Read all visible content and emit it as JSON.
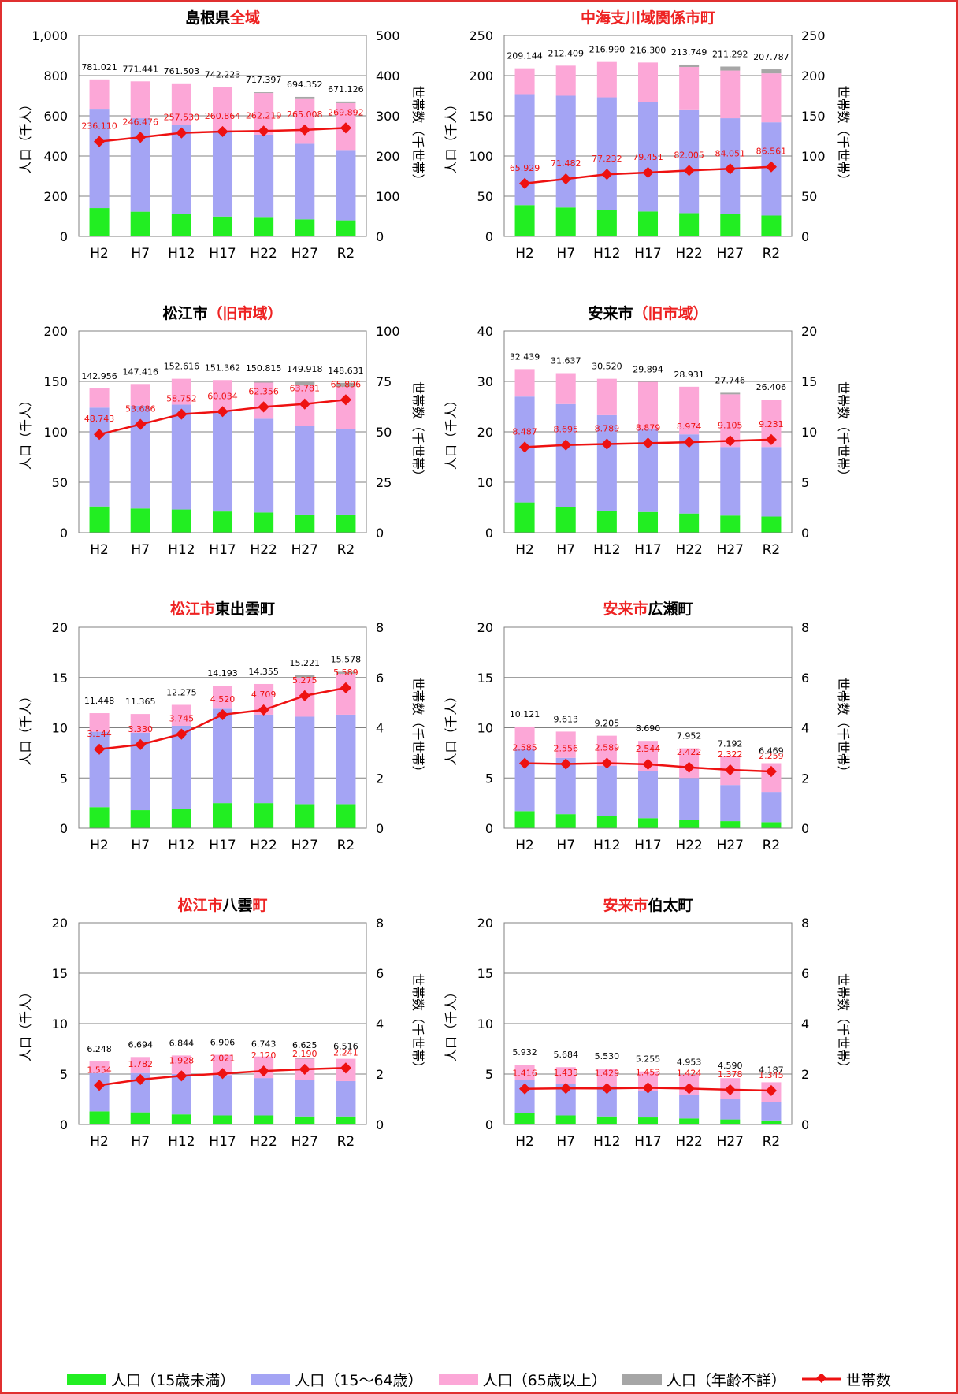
{
  "categories": [
    "H2",
    "H7",
    "H12",
    "H17",
    "H22",
    "H27",
    "R2"
  ],
  "y_left_label": "人口（千人）",
  "y_right_label": "世帯数（千世帯）",
  "colors": {
    "under15": "#22ee22",
    "age15_64": "#a4a4f4",
    "over65": "#fca7d7",
    "unknown": "#a6a6a6",
    "households": "#ee1111",
    "title_red": "#ee2222",
    "frame": "#e03030"
  },
  "legend": [
    {
      "key": "under15",
      "label": "人口（15歳未満）",
      "kind": "bar"
    },
    {
      "key": "age15_64",
      "label": "人口（15～64歳）",
      "kind": "bar"
    },
    {
      "key": "over65",
      "label": "人口（65歳以上）",
      "kind": "bar"
    },
    {
      "key": "unknown",
      "label": "人口（年齢不詳）",
      "kind": "bar"
    },
    {
      "key": "households",
      "label": "世帯数",
      "kind": "line"
    }
  ],
  "chart_data": [
    {
      "type": "bar",
      "title_parts": [
        {
          "text": "島根県",
          "red": false
        },
        {
          "text": "全域",
          "red": true
        }
      ],
      "ylim_left": [
        0,
        1000
      ],
      "yticks_left": [
        "0",
        "200",
        "400",
        "600",
        "800",
        "1,000"
      ],
      "ylim_right": [
        0,
        500
      ],
      "yticks_right": [
        "0",
        "100",
        "200",
        "300",
        "400",
        "500"
      ],
      "totals": [
        "781.021",
        "771.441",
        "761.503",
        "742.223",
        "717.397",
        "694.352",
        "671.126"
      ],
      "total_values": [
        781.021,
        771.441,
        761.503,
        742.223,
        717.397,
        694.352,
        671.126
      ],
      "under15": [
        141,
        123,
        110,
        99,
        93,
        85,
        80
      ],
      "age15_64": [
        494,
        465,
        446,
        428,
        413,
        376,
        350
      ],
      "unknown": [
        0,
        0,
        0,
        0,
        4,
        7,
        8
      ],
      "households": [
        236.11,
        246.476,
        257.53,
        260.864,
        262.219,
        265.008,
        269.892
      ],
      "household_labels": [
        "236.110",
        "246.476",
        "257.530",
        "260.864",
        "262.219",
        "265.008",
        "269.892"
      ]
    },
    {
      "type": "bar",
      "title_parts": [
        {
          "text": "中海支川域関係市町",
          "red": true
        }
      ],
      "ylim_left": [
        0,
        250
      ],
      "yticks_left": [
        "0",
        "50",
        "100",
        "150",
        "200",
        "250"
      ],
      "ylim_right": [
        0,
        250
      ],
      "yticks_right": [
        "0",
        "50",
        "100",
        "150",
        "200",
        "250"
      ],
      "totals": [
        "209.144",
        "212.409",
        "216.990",
        "216.300",
        "213.749",
        "211.292",
        "207.787"
      ],
      "total_values": [
        209.144,
        212.409,
        216.99,
        216.3,
        213.749,
        211.292,
        207.787
      ],
      "under15": [
        39,
        36,
        33,
        31,
        29,
        28,
        26
      ],
      "age15_64": [
        138,
        139,
        140,
        136,
        129,
        119,
        116
      ],
      "unknown": [
        0,
        0,
        0,
        0,
        3,
        5,
        5
      ],
      "households": [
        65.929,
        71.482,
        77.232,
        79.451,
        82.005,
        84.051,
        86.561
      ],
      "household_labels": [
        "65.929",
        "71.482",
        "77.232",
        "79.451",
        "82.005",
        "84.051",
        "86.561"
      ]
    },
    {
      "type": "bar",
      "title_parts": [
        {
          "text": "松江市",
          "red": false
        },
        {
          "text": "（旧市域）",
          "red": true
        }
      ],
      "ylim_left": [
        0,
        200
      ],
      "yticks_left": [
        "0",
        "50",
        "100",
        "150",
        "200"
      ],
      "ylim_right": [
        0,
        100
      ],
      "yticks_right": [
        "0",
        "25",
        "50",
        "75",
        "100"
      ],
      "totals": [
        "142.956",
        "147.416",
        "152.616",
        "151.362",
        "150.815",
        "149.918",
        "148.631"
      ],
      "total_values": [
        142.956,
        147.416,
        152.616,
        151.362,
        150.815,
        149.918,
        148.631
      ],
      "under15": [
        26,
        24,
        23,
        21,
        20,
        18,
        18
      ],
      "age15_64": [
        98,
        102,
        104,
        99,
        93,
        88,
        85
      ],
      "unknown": [
        0,
        0,
        0,
        0,
        2,
        4,
        4
      ],
      "households": [
        48.743,
        53.686,
        58.752,
        60.034,
        62.356,
        63.781,
        65.896
      ],
      "household_labels": [
        "48.743",
        "53.686",
        "58.752",
        "60.034",
        "62.356",
        "63.781",
        "65.896"
      ]
    },
    {
      "type": "bar",
      "title_parts": [
        {
          "text": "安来市",
          "red": false
        },
        {
          "text": "（旧市域）",
          "red": true
        }
      ],
      "ylim_left": [
        0,
        40
      ],
      "yticks_left": [
        "0",
        "10",
        "20",
        "30",
        "40"
      ],
      "ylim_right": [
        0,
        20
      ],
      "yticks_right": [
        "0",
        "5",
        "10",
        "15",
        "20"
      ],
      "totals": [
        "32.439",
        "31.637",
        "30.520",
        "29.894",
        "28.931",
        "27.746",
        "26.406"
      ],
      "total_values": [
        32.439,
        31.637,
        30.52,
        29.894,
        28.931,
        27.746,
        26.406
      ],
      "under15": [
        6,
        5,
        4.3,
        4.1,
        3.8,
        3.4,
        3.2
      ],
      "age15_64": [
        21,
        20.5,
        19,
        16.5,
        15.7,
        13.6,
        13.8
      ],
      "unknown": [
        0,
        0,
        0,
        0,
        0,
        0.3,
        0
      ],
      "households": [
        8.487,
        8.695,
        8.789,
        8.879,
        8.974,
        9.105,
        9.231
      ],
      "household_labels": [
        "8.487",
        "8.695",
        "8.789",
        "8.879",
        "8.974",
        "9.105",
        "9.231"
      ]
    },
    {
      "type": "bar",
      "title_parts": [
        {
          "text": "松江市",
          "red": true
        },
        {
          "text": "東出雲町",
          "red": false
        }
      ],
      "ylim_left": [
        0,
        20
      ],
      "yticks_left": [
        "0",
        "5",
        "10",
        "15",
        "20"
      ],
      "ylim_right": [
        0,
        8
      ],
      "yticks_right": [
        "0",
        "2",
        "4",
        "6",
        "8"
      ],
      "totals": [
        "11.448",
        "11.365",
        "12.275",
        "14.193",
        "14.355",
        "15.221",
        "15.578"
      ],
      "total_values": [
        11.448,
        11.365,
        12.275,
        14.193,
        14.355,
        15.221,
        15.578
      ],
      "under15": [
        2.1,
        1.8,
        1.9,
        2.5,
        2.5,
        2.4,
        2.4
      ],
      "age15_64": [
        7.5,
        7.7,
        8.3,
        9.4,
        8.8,
        8.7,
        8.9
      ],
      "unknown": [
        0,
        0,
        0,
        0,
        0,
        0.3,
        0.2
      ],
      "households": [
        3.144,
        3.33,
        3.745,
        4.52,
        4.709,
        5.275,
        5.589
      ],
      "household_labels": [
        "3.144",
        "3.330",
        "3.745",
        "4.520",
        "4.709",
        "5.275",
        "5.589"
      ]
    },
    {
      "type": "bar",
      "title_parts": [
        {
          "text": "安来市",
          "red": true
        },
        {
          "text": "広瀬町",
          "red": false
        }
      ],
      "ylim_left": [
        0,
        20
      ],
      "yticks_left": [
        "0",
        "5",
        "10",
        "15",
        "20"
      ],
      "ylim_right": [
        0,
        8
      ],
      "yticks_right": [
        "0",
        "2",
        "4",
        "6",
        "8"
      ],
      "totals": [
        "10.121",
        "9.613",
        "9.205",
        "8.690",
        "7.952",
        "7.192",
        "6.469"
      ],
      "total_values": [
        10.121,
        9.613,
        9.205,
        8.69,
        7.952,
        7.192,
        6.469
      ],
      "under15": [
        1.7,
        1.4,
        1.2,
        1.0,
        0.8,
        0.7,
        0.6
      ],
      "age15_64": [
        6.2,
        5.6,
        5.0,
        4.7,
        4.2,
        3.6,
        3.0
      ],
      "unknown": [
        0,
        0,
        0,
        0,
        0,
        0,
        0
      ],
      "households": [
        2.585,
        2.556,
        2.589,
        2.544,
        2.422,
        2.322,
        2.259
      ],
      "household_labels": [
        "2.585",
        "2.556",
        "2.589",
        "2.544",
        "2.422",
        "2.322",
        "2.259"
      ]
    },
    {
      "type": "bar",
      "title_parts": [
        {
          "text": "松江市",
          "red": true
        },
        {
          "text": "八雲",
          "red": false
        },
        {
          "text": "町",
          "red": true
        }
      ],
      "ylim_left": [
        0,
        20
      ],
      "yticks_left": [
        "0",
        "5",
        "10",
        "15",
        "20"
      ],
      "ylim_right": [
        0,
        8
      ],
      "yticks_right": [
        "0",
        "2",
        "4",
        "6",
        "8"
      ],
      "totals": [
        "6.248",
        "6.694",
        "6.844",
        "6.906",
        "6.743",
        "6.625",
        "6.516"
      ],
      "total_values": [
        6.248,
        6.694,
        6.844,
        6.906,
        6.743,
        6.625,
        6.516
      ],
      "under15": [
        1.3,
        1.2,
        1.0,
        0.9,
        0.9,
        0.8,
        0.8
      ],
      "age15_64": [
        3.8,
        3.9,
        4.0,
        4.0,
        3.7,
        3.6,
        3.5
      ],
      "unknown": [
        0,
        0,
        0,
        0,
        0,
        0.1,
        0
      ],
      "households": [
        1.554,
        1.782,
        1.928,
        2.021,
        2.12,
        2.19,
        2.241
      ],
      "household_labels": [
        "1.554",
        "1.782",
        "1.928",
        "2.021",
        "2.120",
        "2.190",
        "2.241"
      ]
    },
    {
      "type": "bar",
      "title_parts": [
        {
          "text": "安来市",
          "red": true
        },
        {
          "text": "伯太町",
          "red": false
        }
      ],
      "ylim_left": [
        0,
        20
      ],
      "yticks_left": [
        "0",
        "5",
        "10",
        "15",
        "20"
      ],
      "ylim_right": [
        0,
        8
      ],
      "yticks_right": [
        "0",
        "2",
        "4",
        "6",
        "8"
      ],
      "totals": [
        "5.932",
        "5.684",
        "5.530",
        "5.255",
        "4.953",
        "4.590",
        "4.187"
      ],
      "total_values": [
        5.932,
        5.684,
        5.53,
        5.255,
        4.953,
        4.59,
        4.187
      ],
      "under15": [
        1.1,
        0.9,
        0.8,
        0.7,
        0.6,
        0.5,
        0.4
      ],
      "age15_64": [
        3.3,
        3.1,
        3.0,
        2.6,
        2.3,
        2.0,
        1.8
      ],
      "unknown": [
        0,
        0,
        0,
        0,
        0,
        0,
        0
      ],
      "households": [
        1.416,
        1.433,
        1.429,
        1.453,
        1.424,
        1.378,
        1.345
      ],
      "household_labels": [
        "1.416",
        "1.433",
        "1.429",
        "1.453",
        "1.424",
        "1.378",
        "1.345"
      ]
    }
  ]
}
